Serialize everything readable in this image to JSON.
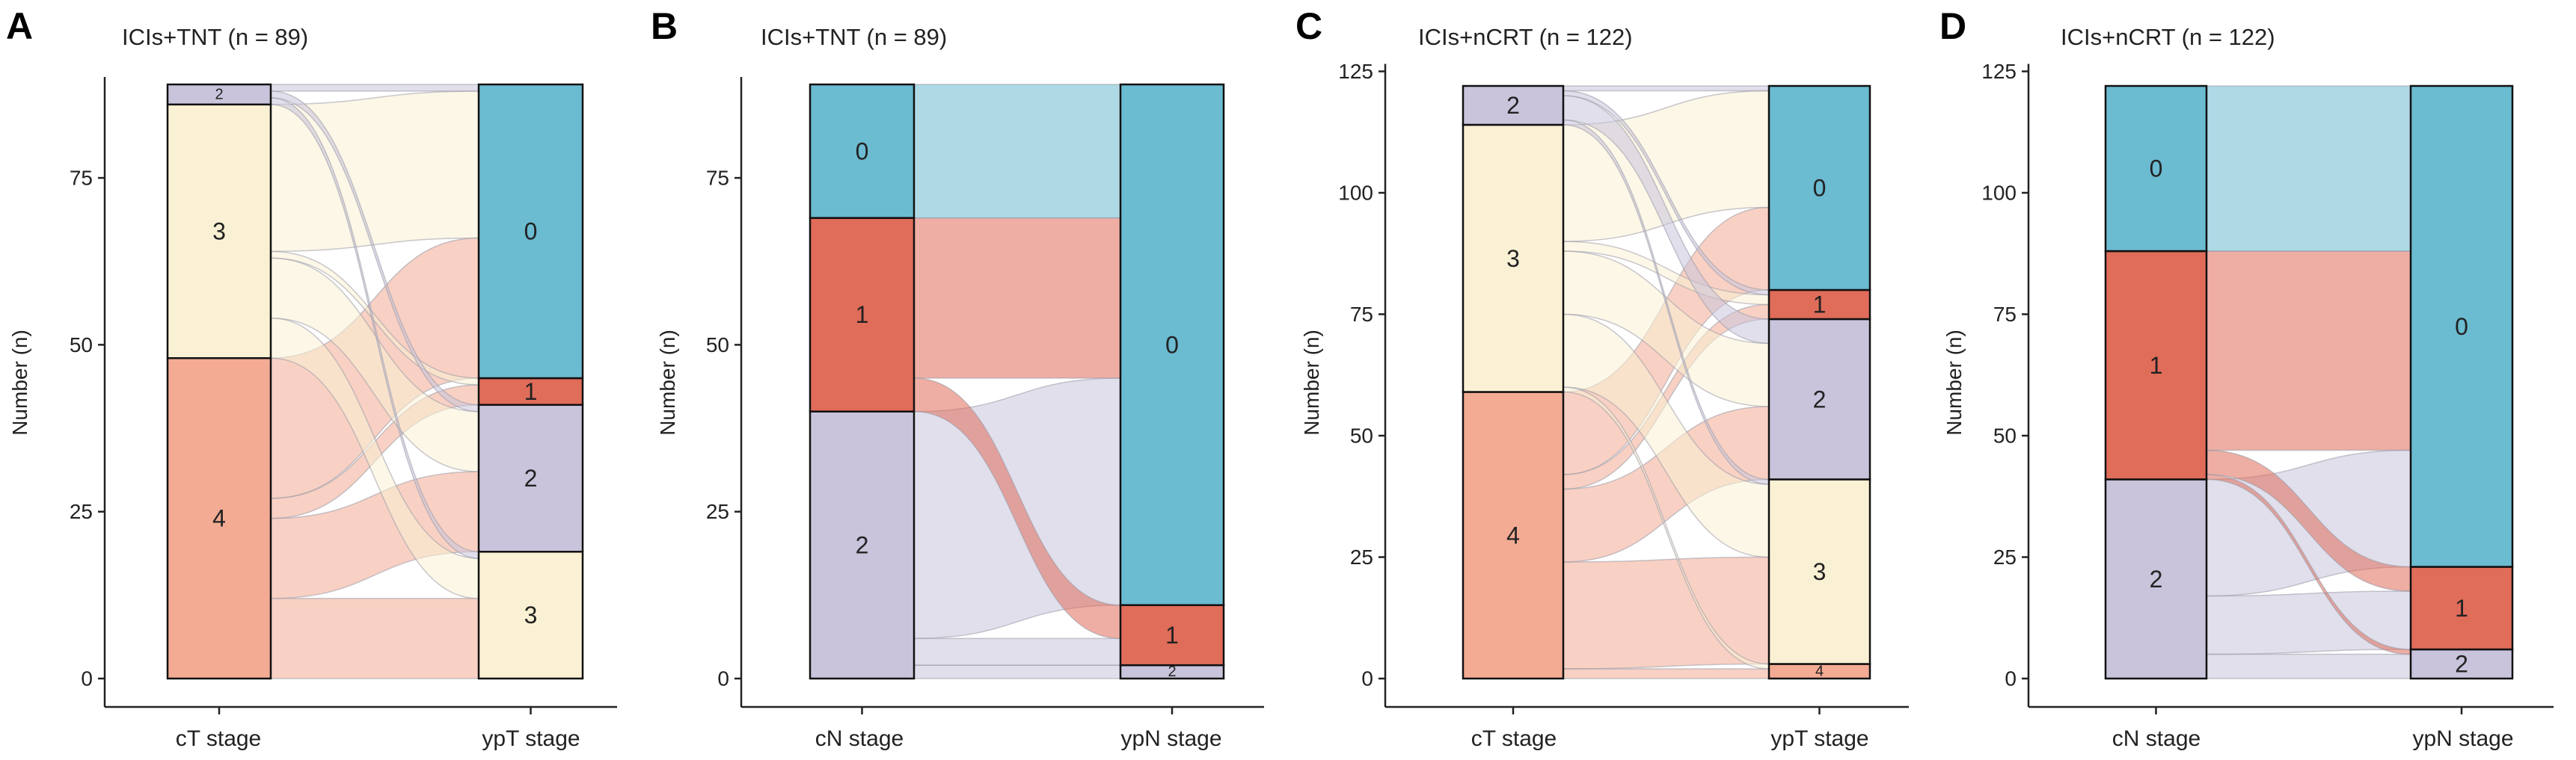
{
  "chart_data": [
    {
      "panel": "A",
      "type": "alluvial",
      "title": "ICIs+TNT (n = 89)",
      "ylabel": "Number (n)",
      "xlabels": [
        "cT stage",
        "ypT stage"
      ],
      "ylim": [
        0,
        89
      ],
      "yticks": [
        0,
        25,
        50,
        75
      ],
      "left_strata": [
        {
          "label": "4",
          "count": 48,
          "color": "#F3AB93"
        },
        {
          "label": "3",
          "count": 38,
          "color": "#FAF1D4"
        },
        {
          "label": "2",
          "count": 3,
          "color": "#C9C4DC",
          "small": true
        }
      ],
      "right_strata": [
        {
          "label": "3",
          "count": 19,
          "color": "#FAF1D4"
        },
        {
          "label": "2",
          "count": 22,
          "color": "#C9C4DC"
        },
        {
          "label": "1",
          "count": 4,
          "color": "#E06C5A"
        },
        {
          "label": "0",
          "count": 44,
          "color": "#6BBBD1"
        }
      ],
      "flows": [
        {
          "from": 0,
          "to": 0,
          "value": 12
        },
        {
          "from": 0,
          "to": 1,
          "value": 12
        },
        {
          "from": 0,
          "to": 2,
          "value": 3
        },
        {
          "from": 0,
          "to": 3,
          "value": 21
        },
        {
          "from": 1,
          "to": 0,
          "value": 6
        },
        {
          "from": 1,
          "to": 1,
          "value": 9
        },
        {
          "from": 1,
          "to": 2,
          "value": 1
        },
        {
          "from": 1,
          "to": 3,
          "value": 22
        },
        {
          "from": 2,
          "to": 0,
          "value": 1
        },
        {
          "from": 2,
          "to": 1,
          "value": 1
        },
        {
          "from": 2,
          "to": 3,
          "value": 1
        }
      ]
    },
    {
      "panel": "B",
      "type": "alluvial",
      "title": "ICIs+TNT (n = 89)",
      "ylabel": "Number (n)",
      "xlabels": [
        "cN stage",
        "ypN stage"
      ],
      "ylim": [
        0,
        89
      ],
      "yticks": [
        0,
        25,
        50,
        75
      ],
      "left_strata": [
        {
          "label": "2",
          "count": 40,
          "color": "#C9C4DC"
        },
        {
          "label": "1",
          "count": 29,
          "color": "#E06C5A"
        },
        {
          "label": "0",
          "count": 20,
          "color": "#6BBBD1"
        }
      ],
      "right_strata": [
        {
          "label": "2",
          "count": 2,
          "color": "#C9C4DC",
          "small": true
        },
        {
          "label": "1",
          "count": 9,
          "color": "#E06C5A"
        },
        {
          "label": "0",
          "count": 78,
          "color": "#6BBBD1"
        }
      ],
      "flows": [
        {
          "from": 0,
          "to": 0,
          "value": 2
        },
        {
          "from": 0,
          "to": 1,
          "value": 4
        },
        {
          "from": 0,
          "to": 2,
          "value": 34
        },
        {
          "from": 1,
          "to": 1,
          "value": 5
        },
        {
          "from": 1,
          "to": 2,
          "value": 24
        },
        {
          "from": 2,
          "to": 2,
          "value": 20
        }
      ]
    },
    {
      "panel": "C",
      "type": "alluvial",
      "title": "ICIs+nCRT (n = 122)",
      "ylabel": "Number (n)",
      "xlabels": [
        "cT stage",
        "ypT stage"
      ],
      "ylim": [
        0,
        122
      ],
      "yticks": [
        0,
        25,
        50,
        75,
        100,
        125
      ],
      "left_strata": [
        {
          "label": "4",
          "count": 59,
          "color": "#F3AB93"
        },
        {
          "label": "3",
          "count": 55,
          "color": "#FAF1D4"
        },
        {
          "label": "2",
          "count": 8,
          "color": "#C9C4DC"
        }
      ],
      "right_strata": [
        {
          "label": "4",
          "count": 3,
          "color": "#F3AB93",
          "small": true
        },
        {
          "label": "3",
          "count": 38,
          "color": "#FAF1D4"
        },
        {
          "label": "2",
          "count": 33,
          "color": "#C9C4DC"
        },
        {
          "label": "1",
          "count": 6,
          "color": "#E06C5A"
        },
        {
          "label": "0",
          "count": 42,
          "color": "#6BBBD1"
        }
      ],
      "flows": [
        {
          "from": 0,
          "to": 0,
          "value": 2
        },
        {
          "from": 0,
          "to": 1,
          "value": 22
        },
        {
          "from": 0,
          "to": 2,
          "value": 15
        },
        {
          "from": 0,
          "to": 3,
          "value": 3
        },
        {
          "from": 0,
          "to": 4,
          "value": 17
        },
        {
          "from": 1,
          "to": 0,
          "value": 1
        },
        {
          "from": 1,
          "to": 1,
          "value": 15
        },
        {
          "from": 1,
          "to": 2,
          "value": 13
        },
        {
          "from": 1,
          "to": 3,
          "value": 2
        },
        {
          "from": 1,
          "to": 4,
          "value": 24
        },
        {
          "from": 2,
          "to": 1,
          "value": 1
        },
        {
          "from": 2,
          "to": 2,
          "value": 5
        },
        {
          "from": 2,
          "to": 3,
          "value": 1
        },
        {
          "from": 2,
          "to": 4,
          "value": 1
        }
      ]
    },
    {
      "panel": "D",
      "type": "alluvial",
      "title": "ICIs+nCRT (n = 122)",
      "ylabel": "Number (n)",
      "xlabels": [
        "cN stage",
        "ypN stage"
      ],
      "ylim": [
        0,
        122
      ],
      "yticks": [
        0,
        25,
        50,
        75,
        100,
        125
      ],
      "left_strata": [
        {
          "label": "2",
          "count": 41,
          "color": "#C9C4DC"
        },
        {
          "label": "1",
          "count": 47,
          "color": "#E06C5A"
        },
        {
          "label": "0",
          "count": 34,
          "color": "#6BBBD1"
        }
      ],
      "right_strata": [
        {
          "label": "2",
          "count": 6,
          "color": "#C9C4DC"
        },
        {
          "label": "1",
          "count": 17,
          "color": "#E06C5A"
        },
        {
          "label": "0",
          "count": 99,
          "color": "#6BBBD1"
        }
      ],
      "flows": [
        {
          "from": 0,
          "to": 0,
          "value": 5
        },
        {
          "from": 0,
          "to": 1,
          "value": 12
        },
        {
          "from": 0,
          "to": 2,
          "value": 24
        },
        {
          "from": 1,
          "to": 0,
          "value": 1
        },
        {
          "from": 1,
          "to": 1,
          "value": 5
        },
        {
          "from": 1,
          "to": 2,
          "value": 41
        },
        {
          "from": 2,
          "to": 2,
          "value": 34
        }
      ]
    }
  ]
}
